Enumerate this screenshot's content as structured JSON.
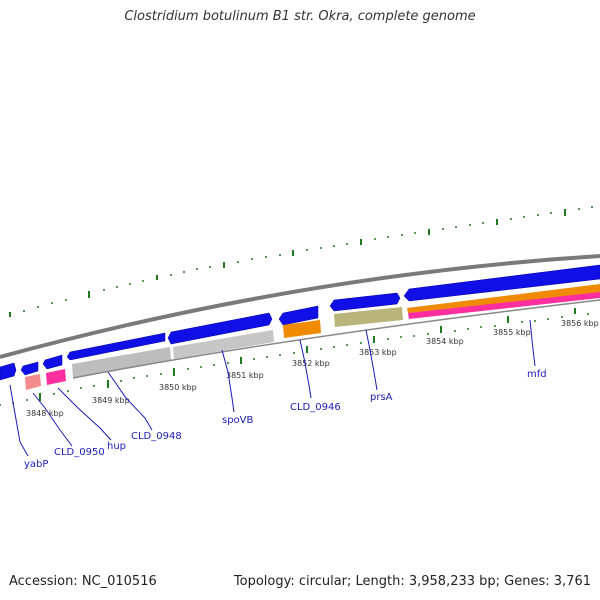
{
  "title": "Clostridium botulinum B1 str. Okra, complete genome",
  "footer": {
    "accession": "Accession: NC_010516",
    "topology": "Topology: circular; Length: 3,958,233 bp; Genes: 3,761"
  },
  "colors": {
    "cds_blue": "#1010e6",
    "backbone_gray": "#7a7a7a",
    "tick_green": "#207a20",
    "label_navy": "#1b1bb5",
    "gene_gray": "#bdbdbd",
    "gene_orange": "#f08a00",
    "gene_olive": "#b9b479",
    "gene_pink": "#ff2f9f",
    "gene_salmon": "#f28b8b"
  },
  "scale_labels": [
    "3848 kbp",
    "3849 kbp",
    "3850 kbp",
    "3851 kbp",
    "3852 kbp",
    "3853 kbp",
    "3854 kbp",
    "3855 kbp",
    "3856 kbp"
  ],
  "gene_labels": [
    "yabP",
    "CLD_0950",
    "hup",
    "CLD_0948",
    "spoVB",
    "CLD_0946",
    "prsA",
    "mfd"
  ]
}
